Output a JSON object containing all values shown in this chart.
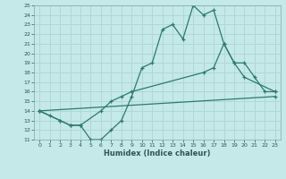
{
  "xlabel": "Humidex (Indice chaleur)",
  "xlim": [
    -0.5,
    23.5
  ],
  "ylim": [
    11,
    25
  ],
  "xticks": [
    0,
    1,
    2,
    3,
    4,
    5,
    6,
    7,
    8,
    9,
    10,
    11,
    12,
    13,
    14,
    15,
    16,
    17,
    18,
    19,
    20,
    21,
    22,
    23
  ],
  "yticks": [
    11,
    12,
    13,
    14,
    15,
    16,
    17,
    18,
    19,
    20,
    21,
    22,
    23,
    24,
    25
  ],
  "background_color": "#c5e8e8",
  "grid_color": "#aed8d8",
  "line_color": "#2d7a6e",
  "line1_x": [
    0,
    1,
    2,
    3,
    4,
    5,
    6,
    7,
    8,
    9,
    10,
    11,
    12,
    13,
    14,
    15,
    16,
    17,
    18,
    19,
    20,
    23
  ],
  "line1_y": [
    14,
    13.5,
    13,
    12.5,
    12.5,
    11,
    11,
    12,
    13,
    15.5,
    18.5,
    19,
    22.5,
    23,
    21.5,
    25,
    24,
    24.5,
    21,
    19,
    17.5,
    16
  ],
  "line2_x": [
    0,
    2,
    3,
    4,
    6,
    7,
    8,
    9,
    16,
    17,
    18,
    19,
    20,
    21,
    22,
    23
  ],
  "line2_y": [
    14,
    13,
    12.5,
    12.5,
    14,
    15,
    15.5,
    16,
    18,
    18.5,
    21,
    19,
    19,
    17.5,
    16,
    16
  ],
  "line3_x": [
    0,
    23
  ],
  "line3_y": [
    14,
    15.5
  ]
}
